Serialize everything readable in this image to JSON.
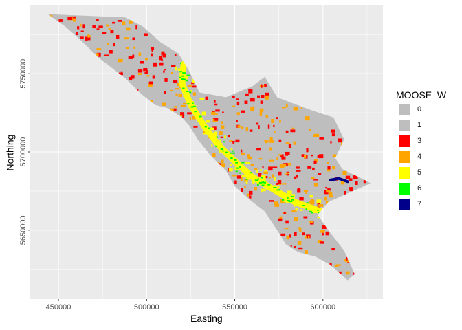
{
  "axes": {
    "xlabel": "Easting",
    "ylabel": "Northing",
    "xlim": [
      434000,
      634000
    ],
    "ylim": [
      5606000,
      5794000
    ],
    "x_ticks": [
      450000,
      500000,
      550000,
      600000
    ],
    "x_tick_labels": [
      "450000",
      "500000",
      "550000",
      "600000"
    ],
    "y_ticks": [
      5650000,
      5700000,
      5750000
    ],
    "y_tick_labels": [
      "5650000",
      "5700000",
      "5750000"
    ],
    "panel_background": "#ebebeb",
    "grid_color": "#ffffff",
    "grid": true
  },
  "legend": {
    "title": "MOOSE_W",
    "placement": "right",
    "items": [
      {
        "label": "0",
        "color": "#bebebe"
      },
      {
        "label": "1",
        "color": "#bebebe"
      },
      {
        "label": "3",
        "color": "#ff0000"
      },
      {
        "label": "4",
        "color": "#ffa500"
      },
      {
        "label": "5",
        "color": "#ffff00"
      },
      {
        "label": "6",
        "color": "#00ff00"
      },
      {
        "label": "7",
        "color": "#00008b"
      }
    ]
  },
  "map": {
    "region_outline_en": [
      [
        444000,
        5788000
      ],
      [
        488000,
        5786000
      ],
      [
        498000,
        5780000
      ],
      [
        508000,
        5770000
      ],
      [
        518000,
        5763000
      ],
      [
        524000,
        5752000
      ],
      [
        530000,
        5738000
      ],
      [
        545000,
        5735000
      ],
      [
        560000,
        5742000
      ],
      [
        567000,
        5748000
      ],
      [
        574000,
        5735000
      ],
      [
        583000,
        5731000
      ],
      [
        595000,
        5726000
      ],
      [
        606000,
        5722000
      ],
      [
        612000,
        5708000
      ],
      [
        607000,
        5696000
      ],
      [
        611000,
        5689000
      ],
      [
        622000,
        5683000
      ],
      [
        627000,
        5680000
      ],
      [
        615000,
        5674000
      ],
      [
        603000,
        5668000
      ],
      [
        597000,
        5660000
      ],
      [
        603000,
        5650000
      ],
      [
        612000,
        5637000
      ],
      [
        618000,
        5622000
      ],
      [
        614000,
        5618000
      ],
      [
        604000,
        5628000
      ],
      [
        596000,
        5633000
      ],
      [
        586000,
        5636000
      ],
      [
        579000,
        5641000
      ],
      [
        574000,
        5650000
      ],
      [
        567000,
        5662000
      ],
      [
        559000,
        5669000
      ],
      [
        550000,
        5678000
      ],
      [
        545000,
        5688000
      ],
      [
        536000,
        5698000
      ],
      [
        529000,
        5708000
      ],
      [
        524000,
        5717000
      ],
      [
        520000,
        5722000
      ],
      [
        512000,
        5728000
      ],
      [
        505000,
        5730000
      ],
      [
        497000,
        5737000
      ],
      [
        488000,
        5747000
      ],
      [
        473000,
        5760000
      ],
      [
        462000,
        5772000
      ],
      [
        454000,
        5780000
      ]
    ],
    "yellow_corridor_en": [
      [
        521000,
        5756000
      ],
      [
        520000,
        5744000
      ],
      [
        525000,
        5730000
      ],
      [
        533000,
        5716000
      ],
      [
        541000,
        5704000
      ],
      [
        550000,
        5694000
      ],
      [
        560000,
        5684000
      ],
      [
        572000,
        5676000
      ],
      [
        584000,
        5668000
      ],
      [
        594000,
        5664000
      ],
      [
        604000,
        5660000
      ]
    ],
    "blue_segment_en": [
      [
        604000,
        5682000
      ],
      [
        609000,
        5683000
      ],
      [
        614000,
        5681000
      ]
    ]
  }
}
